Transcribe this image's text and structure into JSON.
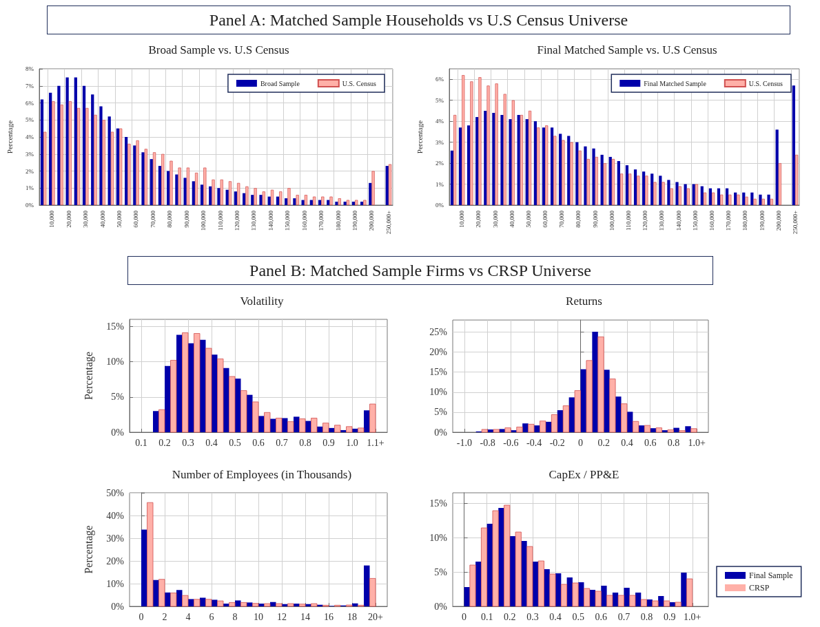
{
  "chart_data": [
    {
      "type": "bar",
      "title": "Broad Sample vs. U.S Census",
      "ylabel": "Percentage",
      "annotations": [
        "Panel A: Matched Sample Households vs U.S Census Universe"
      ],
      "categories": [
        null,
        "10,000",
        null,
        "20,000",
        null,
        "30,000",
        null,
        "40,000",
        null,
        "50,000",
        null,
        "60,000",
        null,
        "70,000",
        null,
        "80,000",
        null,
        "90,000",
        null,
        "100,000",
        null,
        "110,000",
        null,
        "120,000",
        null,
        "130,000",
        null,
        "140,000",
        null,
        "150,000",
        null,
        "160,000",
        null,
        "170,000",
        null,
        "180,000",
        null,
        "190,000",
        null,
        "200,000",
        null,
        "250,000+"
      ],
      "series": [
        {
          "name": "Broad Sample",
          "color": "#0000aa",
          "values": [
            6.2,
            6.6,
            7.0,
            7.5,
            7.5,
            7.0,
            6.5,
            5.8,
            5.2,
            4.5,
            4.0,
            3.5,
            3.1,
            2.7,
            2.3,
            2.0,
            1.8,
            1.6,
            1.4,
            1.2,
            1.1,
            1.0,
            0.9,
            0.8,
            0.7,
            0.6,
            0.6,
            0.5,
            0.5,
            0.4,
            0.4,
            0.3,
            0.3,
            0.3,
            0.3,
            0.2,
            0.2,
            0.2,
            0.2,
            1.3,
            null,
            2.3
          ]
        },
        {
          "name": "U.S. Census",
          "color": "#ffb0a8",
          "values": [
            4.3,
            6.1,
            5.9,
            6.1,
            5.7,
            5.7,
            5.3,
            5.0,
            4.3,
            4.5,
            3.6,
            3.8,
            3.3,
            3.1,
            3.0,
            2.6,
            2.2,
            2.2,
            1.9,
            2.2,
            1.5,
            1.5,
            1.4,
            1.3,
            1.1,
            1.0,
            0.8,
            0.9,
            0.8,
            1.0,
            0.6,
            0.6,
            0.5,
            0.5,
            0.5,
            0.4,
            0.3,
            0.3,
            0.3,
            2.0,
            null,
            2.4
          ]
        }
      ],
      "ylim": [
        0,
        8
      ],
      "yticks": [
        {
          "value": 0,
          "label": "0%"
        },
        {
          "value": 1,
          "label": "1%"
        },
        {
          "value": 2,
          "label": "2%"
        },
        {
          "value": 3,
          "label": "3%"
        },
        {
          "value": 4,
          "label": "4%"
        },
        {
          "value": 5,
          "label": "5%"
        },
        {
          "value": 6,
          "label": "6%"
        },
        {
          "value": 7,
          "label": "7%"
        },
        {
          "value": 8,
          "label": "8%"
        }
      ],
      "grid": true,
      "legend": "top right"
    },
    {
      "type": "bar",
      "title": "Final Matched Sample vs. U.S Census",
      "ylabel": "Percentage",
      "categories": [
        null,
        "10,000",
        null,
        "20,000",
        null,
        "30,000",
        null,
        "40,000",
        null,
        "50,000",
        null,
        "60,000",
        null,
        "70,000",
        null,
        "80,000",
        null,
        "90,000",
        null,
        "100,000",
        null,
        "110,000",
        null,
        "120,000",
        null,
        "130,000",
        null,
        "140,000",
        null,
        "150,000",
        null,
        "160,000",
        null,
        "170,000",
        null,
        "180,000",
        null,
        "190,000",
        null,
        "200,000",
        null,
        "250,000+"
      ],
      "series": [
        {
          "name": "Final Matched Sample",
          "color": "#0000aa",
          "values": [
            2.6,
            3.7,
            3.8,
            4.2,
            4.5,
            4.4,
            4.3,
            4.1,
            4.3,
            4.1,
            4.0,
            3.7,
            3.7,
            3.4,
            3.3,
            3.0,
            2.8,
            2.7,
            2.4,
            2.3,
            2.1,
            1.9,
            1.7,
            1.6,
            1.5,
            1.4,
            1.2,
            1.1,
            1.0,
            1.0,
            0.9,
            0.8,
            0.8,
            0.8,
            0.6,
            0.6,
            0.6,
            0.5,
            0.5,
            3.6,
            null,
            5.7
          ]
        },
        {
          "name": "U.S. Census",
          "color": "#ffb0a8",
          "values": [
            4.3,
            6.2,
            5.9,
            6.1,
            5.7,
            5.8,
            5.3,
            5.0,
            4.3,
            4.5,
            3.7,
            3.8,
            3.3,
            3.1,
            3.0,
            2.6,
            2.2,
            2.3,
            2.0,
            2.2,
            1.5,
            1.5,
            1.4,
            1.4,
            1.1,
            1.1,
            0.8,
            0.9,
            0.8,
            1.0,
            0.6,
            0.6,
            0.5,
            0.5,
            0.5,
            0.4,
            0.3,
            0.3,
            0.3,
            2.0,
            null,
            2.4
          ]
        }
      ],
      "ylim": [
        0,
        6.5
      ],
      "yticks": [
        {
          "value": 0,
          "label": "0%"
        },
        {
          "value": 1,
          "label": "1%"
        },
        {
          "value": 2,
          "label": "2%"
        },
        {
          "value": 3,
          "label": "3%"
        },
        {
          "value": 4,
          "label": "4%"
        },
        {
          "value": 5,
          "label": "5%"
        },
        {
          "value": 6,
          "label": "6%"
        }
      ],
      "grid": true,
      "legend": "top right"
    },
    {
      "type": "histogram",
      "title": "Volatility",
      "ylabel": "Percentage",
      "annotations": [
        "Panel B: Matched Sample Firms vs CRSP Universe"
      ],
      "bins": [
        0.15,
        0.2,
        0.25,
        0.3,
        0.35,
        0.4,
        0.45,
        0.5,
        0.55,
        0.6,
        0.65,
        0.7,
        0.75,
        0.8,
        0.85,
        0.9,
        0.95,
        1.0,
        1.05,
        1.1
      ],
      "series": [
        {
          "color": "#0000aa",
          "values": [
            3.0,
            9.4,
            13.8,
            12.6,
            13.1,
            11.0,
            9.1,
            7.6,
            5.3,
            2.3,
            1.9,
            2.0,
            2.2,
            1.6,
            0.8,
            0.6,
            0.3,
            0.5,
            3.1
          ]
        },
        {
          "color": "#ffb0a8",
          "values": [
            3.2,
            10.2,
            14.1,
            14.0,
            11.9,
            10.4,
            7.9,
            5.9,
            4.3,
            2.8,
            2.0,
            1.5,
            1.9,
            2.0,
            1.3,
            1.0,
            0.8,
            0.6,
            4.0
          ]
        }
      ],
      "xlim": [
        0.05,
        1.15
      ],
      "xticks": [
        0.1,
        0.2,
        0.3,
        0.4,
        0.5,
        0.6,
        0.7,
        0.8,
        0.9,
        {
          "value": 1,
          "label": "1.0"
        },
        {
          "value": 1.1,
          "label": "1.1+"
        }
      ],
      "ylim": [
        0,
        16
      ],
      "yticks": [
        {
          "value": 0,
          "label": "0%"
        },
        {
          "value": 5,
          "label": "5%"
        },
        {
          "value": 10,
          "label": "10%"
        },
        {
          "value": 15,
          "label": "15%"
        }
      ],
      "grid": true
    },
    {
      "type": "histogram",
      "title": "Returns",
      "bins": [
        -0.9,
        -0.8,
        -0.7,
        -0.6,
        -0.5,
        -0.4,
        -0.3,
        -0.2,
        -0.1,
        0,
        0.1,
        0.2,
        0.3,
        0.4,
        0.5,
        0.6,
        0.7,
        0.8,
        0.9,
        1.0
      ],
      "series": [
        {
          "color": "#0000aa",
          "values": [
            0.2,
            0.7,
            0.8,
            0.5,
            2.2,
            1.7,
            2.6,
            5.5,
            8.7,
            15.7,
            25.1,
            15.6,
            8.9,
            5.1,
            1.7,
            1.0,
            0.5,
            1.1,
            1.5
          ]
        },
        {
          "color": "#ffb0a8",
          "values": [
            0.7,
            0.7,
            1.1,
            1.3,
            2.0,
            2.8,
            4.4,
            6.6,
            10.4,
            17.9,
            23.8,
            13.3,
            7.1,
            2.7,
            1.7,
            1.1,
            0.6,
            0.4,
            0.9
          ]
        }
      ],
      "xlim": [
        -1.1,
        1.1
      ],
      "xticks": [
        {
          "value": -1,
          "label": "-1.0"
        },
        -0.8,
        -0.6,
        -0.4,
        -0.2,
        0,
        0.2,
        0.4,
        0.6,
        0.8,
        {
          "value": 1,
          "label": "1.0+"
        }
      ],
      "ylim": [
        0,
        28
      ],
      "yticks": [
        {
          "value": 0,
          "label": "0%"
        },
        {
          "value": 5,
          "label": "5%"
        },
        {
          "value": 10,
          "label": "10%"
        },
        {
          "value": 15,
          "label": "15%"
        },
        {
          "value": 20,
          "label": "20%"
        },
        {
          "value": 25,
          "label": "25%"
        }
      ],
      "grid": true
    },
    {
      "type": "histogram",
      "title": "Number of Employees (in Thousands)",
      "ylabel": "Percentage",
      "bins": [
        0,
        1,
        2,
        3,
        4,
        5,
        6,
        7,
        8,
        9,
        10,
        11,
        12,
        13,
        14,
        15,
        16,
        17,
        18,
        19,
        20
      ],
      "series": [
        {
          "color": "#0000aa",
          "values": [
            33.8,
            11.6,
            6.1,
            7.2,
            3.2,
            3.8,
            2.9,
            1.2,
            2.6,
            1.7,
            1.2,
            1.9,
            1.0,
            1.2,
            1.0,
            0.7,
            0.2,
            0.4,
            1.3,
            18.0
          ]
        },
        {
          "color": "#ffb0a8",
          "values": [
            45.7,
            11.9,
            5.9,
            4.8,
            3.1,
            3.1,
            2.4,
            1.7,
            1.7,
            1.3,
            1.2,
            1.2,
            1.2,
            1.0,
            1.2,
            0.5,
            0.5,
            0.6,
            0.5,
            12.3
          ]
        }
      ],
      "xlim": [
        -1,
        21
      ],
      "xticks": [
        0,
        2,
        4,
        6,
        8,
        10,
        12,
        14,
        16,
        18,
        {
          "value": 20,
          "label": "20+"
        }
      ],
      "ylim": [
        0,
        50
      ],
      "yticks": [
        {
          "value": 0,
          "label": "0%"
        },
        {
          "value": 10,
          "label": "10%"
        },
        {
          "value": 20,
          "label": "20%"
        },
        {
          "value": 30,
          "label": "30%"
        },
        {
          "value": 40,
          "label": "40%"
        },
        {
          "value": 50,
          "label": "50%"
        }
      ],
      "grid": true
    },
    {
      "type": "histogram",
      "title": "CapEx / PP&E",
      "bins": [
        0,
        0.05,
        0.1,
        0.15,
        0.2,
        0.25,
        0.3,
        0.35,
        0.4,
        0.45,
        0.5,
        0.55,
        0.6,
        0.65,
        0.7,
        0.75,
        0.8,
        0.85,
        0.9,
        0.95,
        1.0
      ],
      "series": [
        {
          "name": "Final Sample",
          "color": "#0000aa",
          "values": [
            2.8,
            6.5,
            12.0,
            14.3,
            10.2,
            9.5,
            6.5,
            5.4,
            4.8,
            4.2,
            3.5,
            2.4,
            3.0,
            2.0,
            2.7,
            2.0,
            1.0,
            1.5,
            0.6,
            4.9
          ]
        },
        {
          "name": "CRSP",
          "color": "#ffb0a8",
          "values": [
            6.0,
            11.4,
            13.9,
            14.7,
            10.8,
            8.7,
            6.6,
            4.7,
            3.2,
            3.4,
            2.6,
            2.2,
            1.6,
            1.6,
            1.6,
            1.0,
            0.8,
            0.8,
            0.6,
            4.0
          ]
        }
      ],
      "xlim": [
        -0.05,
        1.07
      ],
      "xticks": [
        0,
        0.1,
        0.2,
        0.3,
        0.4,
        0.5,
        0.6,
        0.7,
        0.8,
        0.9,
        {
          "value": 1,
          "label": "1.0+"
        }
      ],
      "ylim": [
        0,
        16.5
      ],
      "yticks": [
        {
          "value": 0,
          "label": "0%"
        },
        {
          "value": 5,
          "label": "5%"
        },
        {
          "value": 10,
          "label": "10%"
        },
        {
          "value": 15,
          "label": "15%"
        }
      ],
      "grid": true,
      "legend": "right"
    }
  ]
}
